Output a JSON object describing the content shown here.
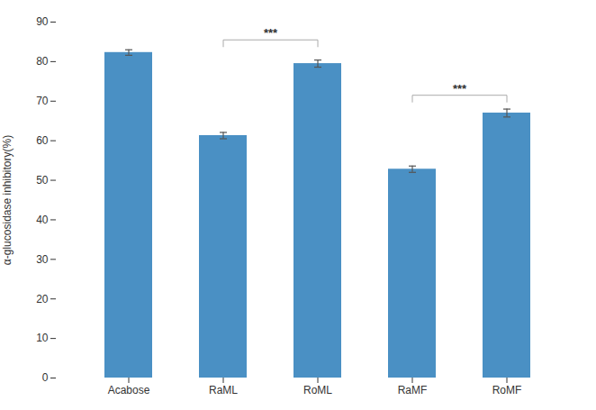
{
  "chart_data": {
    "type": "bar",
    "categories": [
      "Acabose",
      "RaML",
      "RoML",
      "RaMF",
      "RoMF"
    ],
    "values": [
      82.3,
      61.3,
      79.5,
      52.8,
      67.0
    ],
    "errors": [
      0.7,
      0.8,
      0.9,
      0.8,
      1.0
    ],
    "color": "#4A90C4",
    "ylabel": "α-glucosidase inhibitory(%)",
    "ylim": [
      0,
      90
    ],
    "yticks": [
      0,
      10,
      20,
      30,
      40,
      50,
      60,
      70,
      80,
      90
    ],
    "grid": false,
    "annotations": [
      {
        "x1": "RaML",
        "x2": "RoML",
        "y": 85.5,
        "label": "***"
      },
      {
        "x1": "RaMF",
        "x2": "RoMF",
        "y": 71.5,
        "label": "***"
      }
    ]
  }
}
